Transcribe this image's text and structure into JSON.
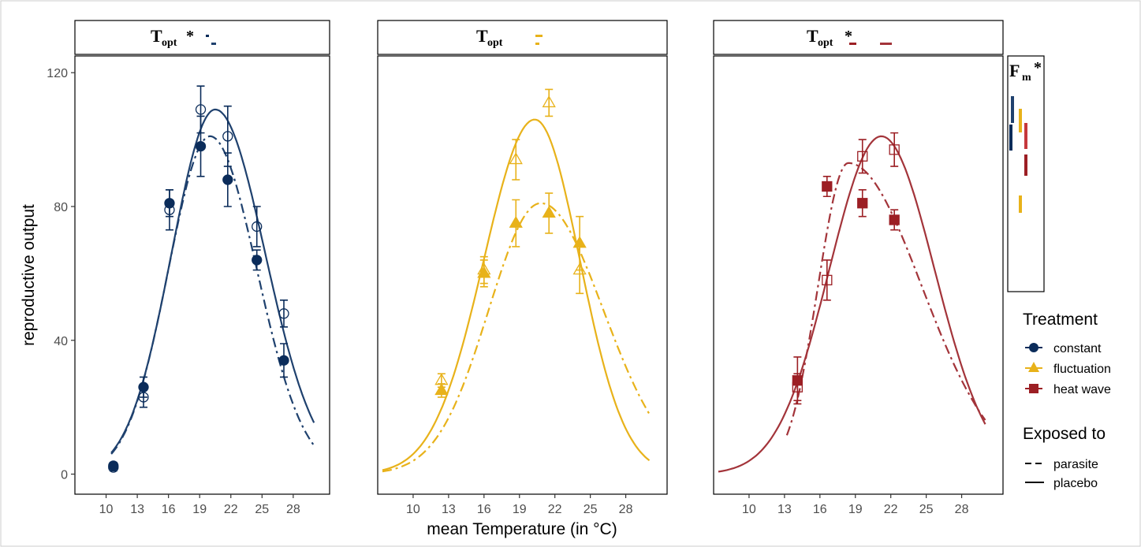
{
  "axes": {
    "ylabel": "reproductive output",
    "xlabel": "mean Temperature (in °C)",
    "yticks": [
      0,
      40,
      80,
      120
    ],
    "xticks": [
      10,
      13,
      16,
      19,
      22,
      25,
      28
    ],
    "ylim": [
      -6,
      125
    ],
    "xlim": [
      7,
      31.5
    ]
  },
  "strips": [
    {
      "label": "T",
      "sub": "opt",
      "star": "*"
    },
    {
      "label": "T",
      "sub": "opt",
      "star": ""
    },
    {
      "label": "T",
      "sub": "opt",
      "star": "*"
    }
  ],
  "fm_panel": {
    "label": "F",
    "sub": "m",
    "star": "*"
  },
  "legend": {
    "treatment_title": "Treatment",
    "treatments": [
      {
        "label": "constant",
        "color": "#0b2c5a",
        "shape": "circle"
      },
      {
        "label": "fluctuation",
        "color": "#e8b21a",
        "shape": "triangle"
      },
      {
        "label": "heat wave",
        "color": "#9c1f24",
        "shape": "square"
      }
    ],
    "exposed_title": "Exposed to",
    "exposed": [
      {
        "label": "parasite",
        "linetype": "dashed"
      },
      {
        "label": "placebo",
        "linetype": "solid"
      }
    ]
  },
  "chart_data": [
    {
      "type": "scatter",
      "panel": "constant",
      "color": "#0b2c5a",
      "line_color": "#1f416e",
      "shape": "circle",
      "series": [
        {
          "name": "placebo",
          "filled": false,
          "points": [
            {
              "x": 10.7,
              "y": 2,
              "err": 1
            },
            {
              "x": 13.6,
              "y": 23,
              "err": 3
            },
            {
              "x": 16.1,
              "y": 79,
              "err": 6
            },
            {
              "x": 19.1,
              "y": 109,
              "err": 7
            },
            {
              "x": 21.7,
              "y": 101,
              "err": 9
            },
            {
              "x": 24.5,
              "y": 74,
              "err": 6
            },
            {
              "x": 27.1,
              "y": 48,
              "err": 4
            }
          ],
          "curve": {
            "a": 109,
            "mu": 20.5,
            "sigL": 4.2,
            "sigR": 4.8,
            "x0": 10.5,
            "x1": 30.0
          }
        },
        {
          "name": "parasite",
          "filled": true,
          "points": [
            {
              "x": 10.7,
              "y": 2.5,
              "err": 1
            },
            {
              "x": 13.6,
              "y": 26,
              "err": 3
            },
            {
              "x": 16.1,
              "y": 81,
              "err": 4
            },
            {
              "x": 19.1,
              "y": 98,
              "err": 9
            },
            {
              "x": 21.7,
              "y": 88,
              "err": 8
            },
            {
              "x": 24.5,
              "y": 64,
              "err": 3
            },
            {
              "x": 27.1,
              "y": 34,
              "err": 5
            }
          ],
          "curve": {
            "a": 101,
            "mu": 20.0,
            "sigL": 4.0,
            "sigR": 4.5,
            "x0": 10.5,
            "x1": 30.0
          }
        }
      ]
    },
    {
      "type": "scatter",
      "panel": "fluctuation",
      "color": "#e8b21a",
      "line_color": "#e8b21a",
      "shape": "triangle",
      "series": [
        {
          "name": "placebo",
          "filled": false,
          "points": [
            {
              "x": 12.4,
              "y": 28,
              "err": 2
            },
            {
              "x": 16.0,
              "y": 61,
              "err": 4
            },
            {
              "x": 18.7,
              "y": 94,
              "err": 6
            },
            {
              "x": 21.5,
              "y": 111,
              "err": 4
            },
            {
              "x": 24.1,
              "y": 61,
              "err": 7
            }
          ],
          "curve": {
            "a": 106,
            "mu": 20.3,
            "sigL": 4.3,
            "sigR": 3.8,
            "x0": 7.4,
            "x1": 30.0
          }
        },
        {
          "name": "parasite",
          "filled": true,
          "points": [
            {
              "x": 12.4,
              "y": 25,
              "err": 2
            },
            {
              "x": 16.0,
              "y": 60,
              "err": 4
            },
            {
              "x": 18.7,
              "y": 75,
              "err": 7
            },
            {
              "x": 21.5,
              "y": 78,
              "err": 6
            },
            {
              "x": 24.1,
              "y": 69,
              "err": 8
            }
          ],
          "curve": {
            "a": 81,
            "mu": 20.8,
            "sigL": 4.4,
            "sigR": 5.3,
            "x0": 7.4,
            "x1": 30.0
          }
        }
      ]
    },
    {
      "type": "scatter",
      "panel": "heat wave",
      "color": "#9c1f24",
      "line_color": "#a3343a",
      "shape": "square",
      "series": [
        {
          "name": "placebo",
          "filled": false,
          "points": [
            {
              "x": 14.1,
              "y": 26,
              "err": 4
            },
            {
              "x": 16.6,
              "y": 58,
              "err": 6
            },
            {
              "x": 19.6,
              "y": 95,
              "err": 5
            },
            {
              "x": 22.3,
              "y": 97,
              "err": 5
            }
          ],
          "curve": {
            "a": 101,
            "mu": 21.2,
            "sigL": 4.4,
            "sigR": 4.5,
            "x0": 7.4,
            "x1": 30.0
          }
        },
        {
          "name": "parasite",
          "filled": true,
          "points": [
            {
              "x": 14.1,
              "y": 28,
              "err": 7
            },
            {
              "x": 16.6,
              "y": 86,
              "err": 3
            },
            {
              "x": 19.6,
              "y": 81,
              "err": 4
            },
            {
              "x": 22.3,
              "y": 76,
              "err": 3
            }
          ],
          "curve": {
            "a": 93,
            "mu": 18.4,
            "sigL": 2.55,
            "sigR": 6.2,
            "x0": 13.2,
            "x1": 30.0
          }
        }
      ]
    }
  ]
}
